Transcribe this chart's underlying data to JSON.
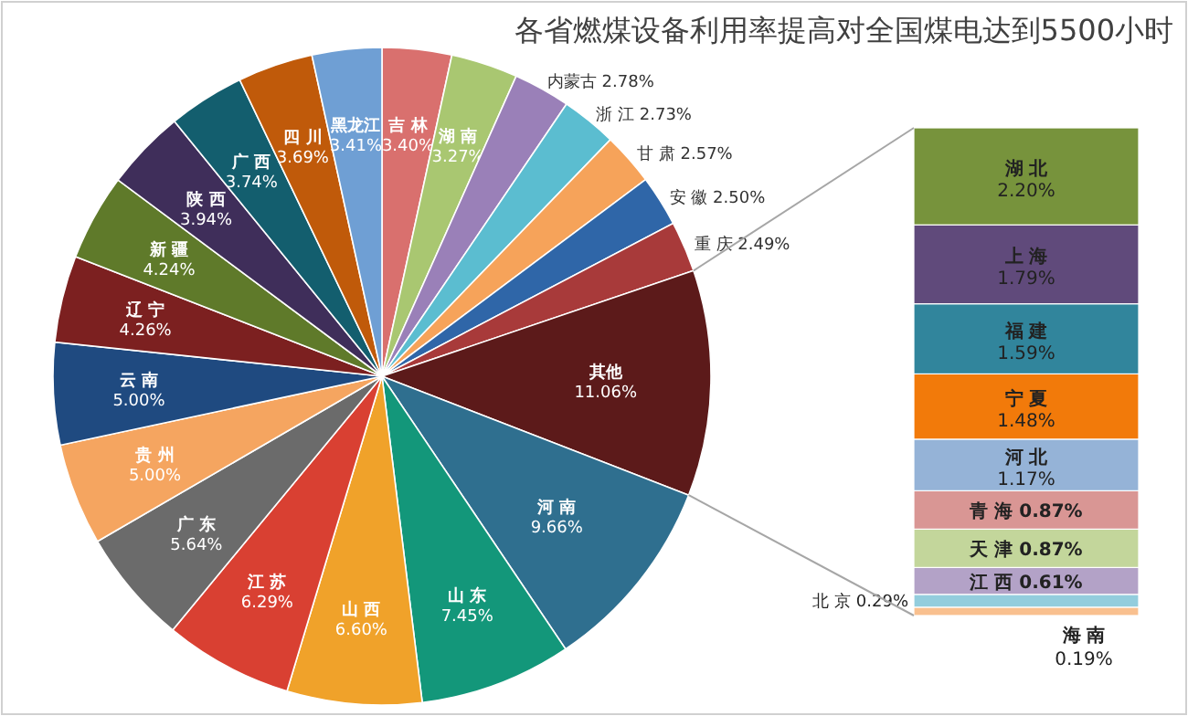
{
  "chart_data": [
    {
      "type": "pie",
      "title": "各省燃煤设备利用率提高对全国煤电达到5500小时",
      "categories": [
        "吉 林",
        "湖 南",
        "内蒙古",
        "浙 江",
        "甘 肃",
        "安 徽",
        "重 庆",
        "其他",
        "河 南",
        "山 东",
        "山 西",
        "江 苏",
        "广 东",
        "贵 州",
        "云 南",
        "辽 宁",
        "新 疆",
        "陕 西",
        "广 西",
        "四 川",
        "黑龙江"
      ],
      "values": [
        3.4,
        3.27,
        2.78,
        2.73,
        2.57,
        2.5,
        2.49,
        11.06,
        9.66,
        7.45,
        6.6,
        6.29,
        5.64,
        5.0,
        5.0,
        4.26,
        4.24,
        3.94,
        3.74,
        3.69,
        3.41
      ],
      "value_labels": [
        "3.40%",
        "3.27%",
        "2.78%",
        "2.73%",
        "2.57%",
        "2.50%",
        "2.49%",
        "11.06%",
        "9.66%",
        "7.45%",
        "6.60%",
        "6.29%",
        "5.64%",
        "5.00%",
        "5.00%",
        "4.26%",
        "4.24%",
        "3.94%",
        "3.74%",
        "3.69%",
        "3.41%"
      ],
      "colors": [
        "#d9706e",
        "#a9c771",
        "#9a80b8",
        "#5bbdd0",
        "#f6a35a",
        "#2f66a8",
        "#a83a3a",
        "#5c1a1a",
        "#2f6f8f",
        "#13977a",
        "#f0a22a",
        "#d94032",
        "#6b6b6b",
        "#f5a560",
        "#1f4a80",
        "#7c2020",
        "#5f7a2a",
        "#3f2e5a",
        "#135e6e",
        "#c05a0a",
        "#6f9fd4"
      ]
    },
    {
      "type": "bar",
      "stacked": true,
      "categories": [
        null
      ],
      "series": [
        {
          "name": "海 南",
          "color": "#f9c08f",
          "values": [
            0.19
          ],
          "value_labels": [
            "0.19%"
          ]
        },
        {
          "name": "北 京",
          "color": "#93cddd",
          "values": [
            0.29
          ],
          "value_labels": [
            "0.29%"
          ]
        },
        {
          "name": "江 西",
          "color": "#b3a2c7",
          "values": [
            0.61
          ],
          "value_labels": [
            "0.61%"
          ]
        },
        {
          "name": "天 津",
          "color": "#c3d69b",
          "values": [
            0.87
          ],
          "value_labels": [
            "0.87%"
          ]
        },
        {
          "name": "青 海",
          "color": "#d99694",
          "values": [
            0.87
          ],
          "value_labels": [
            "0.87%"
          ]
        },
        {
          "name": "河 北",
          "color": "#95b3d7",
          "values": [
            1.17
          ],
          "value_labels": [
            "1.17%"
          ]
        },
        {
          "name": "宁 夏",
          "color": "#f27a0a",
          "values": [
            1.48
          ],
          "value_labels": [
            "1.48%"
          ]
        },
        {
          "name": "福 建",
          "color": "#31859c",
          "values": [
            1.59
          ],
          "value_labels": [
            "1.59%"
          ]
        },
        {
          "name": "上 海",
          "color": "#604a7b",
          "values": [
            1.79
          ],
          "value_labels": [
            "1.79%"
          ]
        },
        {
          "name": "湖 北",
          "color": "#77933c",
          "values": [
            2.2
          ],
          "value_labels": [
            "2.20%"
          ]
        }
      ]
    }
  ]
}
